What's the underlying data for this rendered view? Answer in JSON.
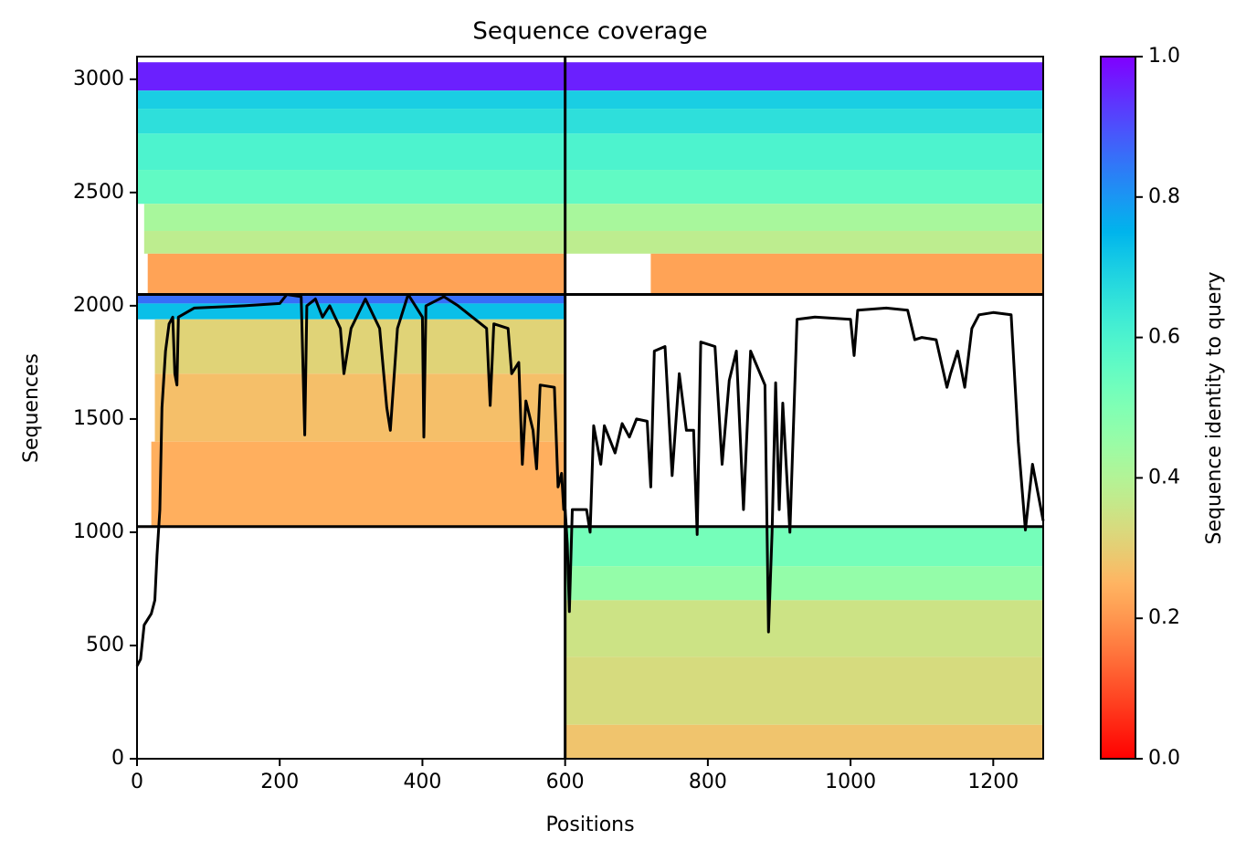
{
  "chart_data": {
    "type": "coverage",
    "title": "Sequence coverage",
    "x_label": "Positions",
    "y_label": "Sequences",
    "colorbar_label": "Sequence identity to query",
    "colormap": "rainbow_r",
    "xlim": [
      0,
      1270
    ],
    "ylim": [
      0,
      3100
    ],
    "xticks": [
      0,
      200,
      400,
      600,
      800,
      1000,
      1200
    ],
    "yticks": [
      0,
      500,
      1000,
      1500,
      2000,
      2500,
      3000
    ],
    "clim": [
      0,
      1
    ],
    "cticks": [
      {
        "value": 0,
        "label": "0.0"
      },
      {
        "value": 0.2,
        "label": "0.2"
      },
      {
        "value": 0.4,
        "label": "0.4"
      },
      {
        "value": 0.6,
        "label": "0.6"
      },
      {
        "value": 0.8,
        "label": "0.8"
      },
      {
        "value": 1,
        "label": "1.0"
      }
    ],
    "bands": [
      {
        "x": [
          0,
          1270
        ],
        "y": [
          2950,
          3075
        ],
        "identity": 0.96
      },
      {
        "x": [
          0,
          1270
        ],
        "y": [
          2870,
          2950
        ],
        "identity": 0.7
      },
      {
        "x": [
          0,
          1270
        ],
        "y": [
          2760,
          2870
        ],
        "identity": 0.66
      },
      {
        "x": [
          0,
          1270
        ],
        "y": [
          2600,
          2760
        ],
        "identity": 0.6
      },
      {
        "x": [
          0,
          1270
        ],
        "y": [
          2450,
          2600
        ],
        "identity": 0.56
      },
      {
        "x": [
          10,
          1270
        ],
        "y": [
          2330,
          2450
        ],
        "identity": 0.42
      },
      {
        "x": [
          10,
          1270
        ],
        "y": [
          2230,
          2330
        ],
        "identity": 0.38
      },
      {
        "x": [
          15,
          600
        ],
        "y": [
          2050,
          2230
        ],
        "identity": 0.22
      },
      {
        "x": [
          720,
          1270
        ],
        "y": [
          2050,
          2230
        ],
        "identity": 0.22
      },
      {
        "x": [
          0,
          600
        ],
        "y": [
          2010,
          2050
        ],
        "identity": 0.86
      },
      {
        "x": [
          0,
          600
        ],
        "y": [
          1940,
          2010
        ],
        "identity": 0.73
      },
      {
        "x": [
          25,
          600
        ],
        "y": [
          1700,
          1940
        ],
        "identity": 0.31
      },
      {
        "x": [
          25,
          600
        ],
        "y": [
          1400,
          1700
        ],
        "identity": 0.27
      },
      {
        "x": [
          20,
          600
        ],
        "y": [
          1025,
          1400
        ],
        "identity": 0.24
      },
      {
        "x": [
          600,
          1270
        ],
        "y": [
          850,
          1025
        ],
        "identity": 0.52
      },
      {
        "x": [
          600,
          1270
        ],
        "y": [
          700,
          850
        ],
        "identity": 0.46
      },
      {
        "x": [
          600,
          1270
        ],
        "y": [
          450,
          700
        ],
        "identity": 0.35
      },
      {
        "x": [
          600,
          1270
        ],
        "y": [
          150,
          450
        ],
        "identity": 0.33
      },
      {
        "x": [
          600,
          1270
        ],
        "y": [
          0,
          150
        ],
        "identity": 0.28
      }
    ],
    "dividers_x": [
      600
    ],
    "dividers_y": [
      1025,
      2050
    ],
    "line_color": "#000000",
    "x": [
      0,
      5,
      10,
      20,
      25,
      28,
      32,
      35,
      40,
      45,
      50,
      53,
      56,
      58,
      80,
      150,
      200,
      210,
      230,
      235,
      238,
      250,
      260,
      270,
      285,
      290,
      300,
      320,
      340,
      350,
      355,
      365,
      380,
      400,
      402,
      405,
      430,
      450,
      470,
      490,
      495,
      500,
      520,
      525,
      535,
      540,
      545,
      555,
      560,
      565,
      585,
      590,
      595,
      598,
      600,
      603,
      606,
      610,
      630,
      635,
      640,
      650,
      655,
      670,
      680,
      690,
      700,
      715,
      720,
      725,
      740,
      750,
      760,
      770,
      780,
      785,
      790,
      810,
      820,
      830,
      840,
      850,
      860,
      880,
      885,
      890,
      895,
      900,
      905,
      915,
      925,
      950,
      1000,
      1005,
      1010,
      1050,
      1080,
      1090,
      1100,
      1120,
      1135,
      1140,
      1150,
      1160,
      1170,
      1180,
      1200,
      1225,
      1235,
      1245,
      1255,
      1270
    ],
    "values": [
      410,
      440,
      590,
      640,
      700,
      900,
      1100,
      1550,
      1800,
      1920,
      1950,
      1700,
      1650,
      1950,
      1990,
      2000,
      2010,
      2050,
      2040,
      1430,
      2000,
      2030,
      1950,
      2000,
      1900,
      1700,
      1900,
      2030,
      1900,
      1550,
      1450,
      1900,
      2050,
      1950,
      1420,
      2000,
      2040,
      2000,
      1950,
      1900,
      1560,
      1920,
      1900,
      1700,
      1750,
      1300,
      1580,
      1450,
      1280,
      1650,
      1640,
      1200,
      1260,
      1100,
      1100,
      950,
      650,
      1100,
      1100,
      1000,
      1470,
      1300,
      1470,
      1350,
      1480,
      1420,
      1500,
      1490,
      1200,
      1800,
      1820,
      1250,
      1700,
      1450,
      1450,
      990,
      1840,
      1820,
      1300,
      1670,
      1800,
      1100,
      1800,
      1650,
      560,
      1000,
      1660,
      1100,
      1570,
      1000,
      1940,
      1950,
      1940,
      1780,
      1980,
      1990,
      1980,
      1850,
      1860,
      1850,
      1640,
      1700,
      1800,
      1640,
      1900,
      1960,
      1970,
      1960,
      1400,
      1010,
      1300,
      1050
    ]
  }
}
